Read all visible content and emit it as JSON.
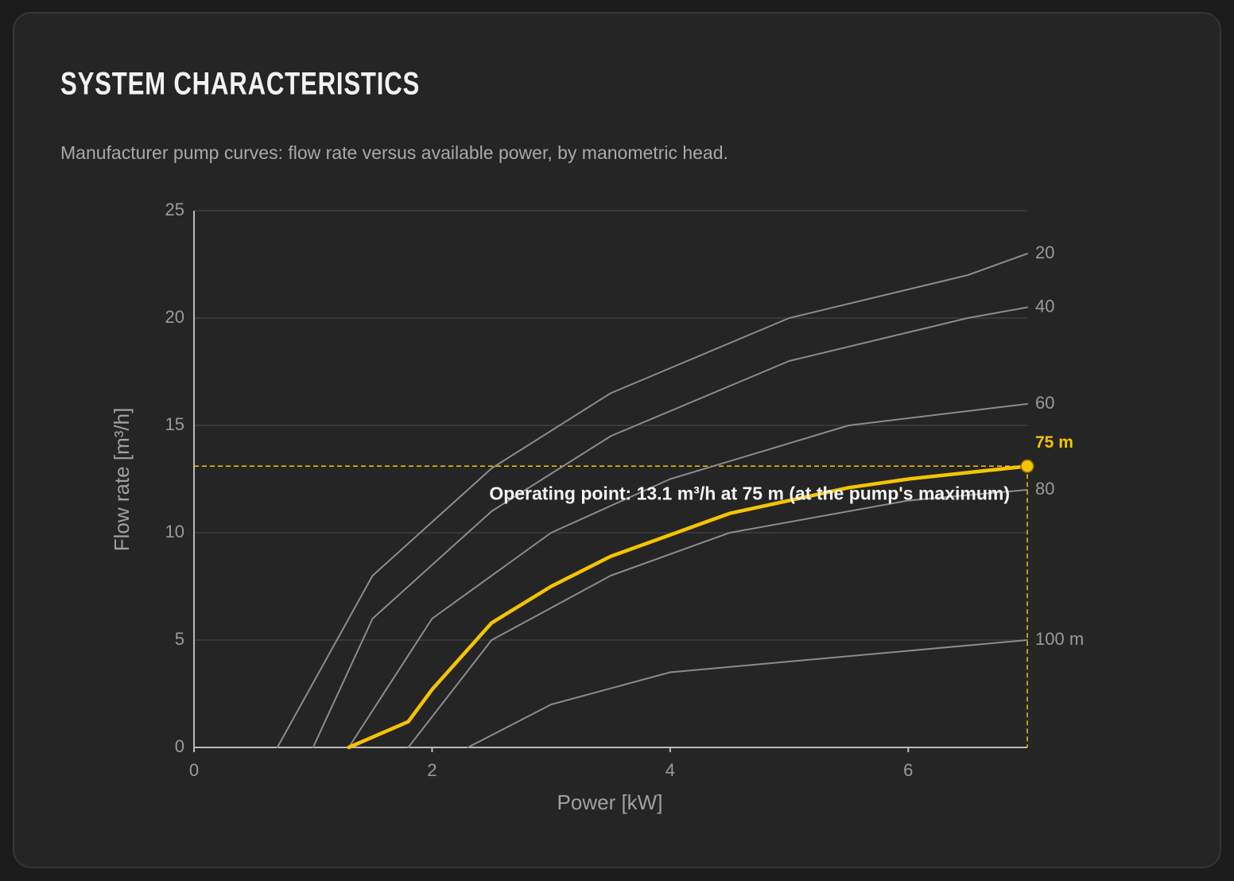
{
  "chart_data": {
    "type": "line",
    "title": "SYSTEM CHARACTERISTICS",
    "subtitle": "Manufacturer pump curves: flow rate versus available power, by manometric head.",
    "xlabel": "Power [kW]",
    "ylabel": "Flow rate [m³/h]",
    "xlim": [
      0,
      7
    ],
    "ylim": [
      0,
      25
    ],
    "xticks": [
      0,
      2,
      4,
      6
    ],
    "yticks": [
      0,
      5,
      10,
      15,
      20,
      25
    ],
    "grid": true,
    "series": [
      {
        "name": "20",
        "color": "#8c8c8c",
        "x": [
          0.7,
          1.5,
          2.5,
          3.5,
          5,
          6.5,
          7
        ],
        "values": [
          0,
          8,
          13,
          16.5,
          20,
          22,
          23
        ]
      },
      {
        "name": "40",
        "color": "#8c8c8c",
        "x": [
          1.0,
          1.5,
          2.5,
          3.5,
          5,
          6.5,
          7
        ],
        "values": [
          0,
          6,
          11,
          14.5,
          18,
          20,
          20.5
        ]
      },
      {
        "name": "60",
        "color": "#8c8c8c",
        "x": [
          1.3,
          2,
          3,
          4,
          5.5,
          7
        ],
        "values": [
          0,
          6,
          10,
          12.5,
          15,
          16
        ]
      },
      {
        "name": "75 m",
        "color": "#f5c400",
        "highlighted": true,
        "x": [
          1.3,
          1.8,
          2,
          2.5,
          3,
          3.5,
          4,
          4.5,
          5.5,
          6,
          7
        ],
        "values": [
          0,
          1.2,
          2.7,
          5.8,
          7.5,
          8.9,
          9.9,
          10.9,
          12.1,
          12.5,
          13.1
        ]
      },
      {
        "name": "80",
        "color": "#8c8c8c",
        "x": [
          1.8,
          2.5,
          3.5,
          4.5,
          6,
          7
        ],
        "values": [
          0,
          5,
          8,
          10,
          11.5,
          12
        ]
      },
      {
        "name": "100 m",
        "color": "#8c8c8c",
        "x": [
          2.3,
          3,
          4,
          7
        ],
        "values": [
          0,
          2,
          3.5,
          5
        ]
      }
    ],
    "operating_point": {
      "x": 7,
      "y": 13.1,
      "color": "#f5c400",
      "label": "Operating point: 13.1 m³/h at 75 m (at the pump's maximum)"
    }
  }
}
